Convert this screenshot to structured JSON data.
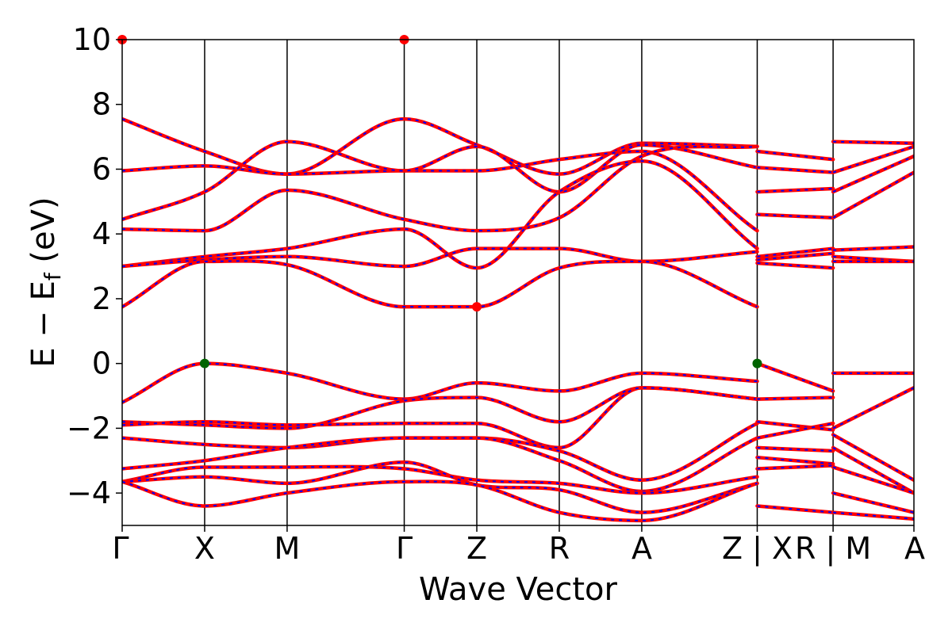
{
  "chart_data": {
    "type": "line",
    "xlabel": "Wave Vector",
    "ylabel": "E − E",
    "ylabel_subscript": "f",
    "ylabel_unit": " (eV)",
    "ylim": [
      -5,
      10
    ],
    "yticks": [
      -4,
      -2,
      0,
      2,
      4,
      6,
      8,
      10
    ],
    "xlim": [
      0,
      9.6
    ],
    "kpoints": [
      {
        "label": "Γ",
        "x": 0
      },
      {
        "label": "X",
        "x": 1
      },
      {
        "label": "M",
        "x": 2
      },
      {
        "label": "Γ",
        "x": 3.42
      },
      {
        "label": "Z",
        "x": 4.3
      },
      {
        "label": "R",
        "x": 5.3
      },
      {
        "label": "A",
        "x": 6.3
      },
      {
        "label": "Z | X",
        "x": 7.7
      },
      {
        "label": "R | M",
        "x": 8.62
      },
      {
        "label": "A",
        "x": 9.6
      }
    ],
    "series_style": {
      "primary_color": "#ff0000",
      "overlay_color": "#0000ff"
    },
    "series": [
      {
        "x": [
          0,
          1,
          2,
          3.42,
          4.3,
          5.3,
          6.3,
          7.7
        ],
        "y": [
          7.55,
          6.55,
          5.85,
          7.55,
          6.75,
          5.85,
          6.8,
          6.7
        ]
      },
      {
        "x": [
          0,
          1,
          2,
          3.42,
          4.3,
          5.3,
          6.3,
          7.7
        ],
        "y": [
          5.95,
          6.1,
          5.85,
          5.95,
          5.95,
          6.3,
          6.55,
          4.1
        ]
      },
      {
        "x": [
          0,
          1,
          2,
          3.42,
          4.3,
          5.3,
          6.3,
          7.7
        ],
        "y": [
          4.45,
          5.3,
          6.85,
          5.95,
          6.7,
          5.3,
          6.75,
          6.05
        ]
      },
      {
        "x": [
          0,
          1,
          2,
          3.42,
          4.3,
          5.3,
          6.3,
          7.7
        ],
        "y": [
          4.15,
          4.1,
          5.35,
          4.45,
          4.1,
          4.5,
          6.4,
          6.7
        ]
      },
      {
        "x": [
          0,
          1,
          2,
          3.42,
          4.3,
          5.3,
          6.3,
          7.7
        ],
        "y": [
          3.0,
          3.3,
          3.55,
          4.15,
          2.95,
          5.3,
          6.25,
          3.55
        ]
      },
      {
        "x": [
          0,
          1,
          2,
          3.42,
          4.3,
          5.3,
          6.3,
          7.7
        ],
        "y": [
          3.0,
          3.2,
          3.3,
          3.0,
          3.55,
          3.55,
          3.15,
          3.45
        ]
      },
      {
        "x": [
          0,
          1,
          2,
          3.42,
          4.3,
          5.3,
          6.3,
          7.7
        ],
        "y": [
          1.75,
          3.15,
          3.05,
          1.75,
          1.75,
          2.95,
          3.15,
          1.75
        ]
      },
      {
        "x": [
          0,
          1,
          2,
          3.42,
          4.3,
          5.3,
          6.3,
          7.7
        ],
        "y": [
          -1.2,
          0.0,
          -0.3,
          -1.1,
          -0.6,
          -0.85,
          -0.3,
          -0.55
        ]
      },
      {
        "x": [
          0,
          1,
          2,
          3.42,
          4.3,
          5.3,
          6.3,
          7.7
        ],
        "y": [
          -1.8,
          -1.9,
          -2.0,
          -1.15,
          -1.05,
          -1.8,
          -0.75,
          -1.1
        ]
      },
      {
        "x": [
          0,
          1,
          2,
          3.42,
          4.3,
          5.3,
          6.3,
          7.7
        ],
        "y": [
          -1.9,
          -1.8,
          -1.9,
          -1.85,
          -1.85,
          -2.6,
          -0.75,
          -1.1
        ]
      },
      {
        "x": [
          0,
          1,
          2,
          3.42,
          4.3,
          5.3,
          6.3,
          7.7
        ],
        "y": [
          -2.3,
          -2.5,
          -2.6,
          -2.3,
          -2.3,
          -2.7,
          -3.6,
          -1.85
        ]
      },
      {
        "x": [
          0,
          1,
          2,
          3.42,
          4.3,
          5.3,
          6.3,
          7.7
        ],
        "y": [
          -3.25,
          -3.0,
          -2.6,
          -2.3,
          -2.3,
          -3.0,
          -3.95,
          -2.3
        ]
      },
      {
        "x": [
          0,
          1,
          2,
          3.42,
          4.3,
          5.3,
          6.3,
          7.7
        ],
        "y": [
          -3.65,
          -3.2,
          -3.2,
          -3.25,
          -3.6,
          -3.7,
          -4.0,
          -3.5
        ]
      },
      {
        "x": [
          0,
          1,
          2,
          3.42,
          4.3,
          5.3,
          6.3,
          7.7
        ],
        "y": [
          -3.65,
          -3.5,
          -3.7,
          -3.05,
          -3.75,
          -3.9,
          -4.6,
          -3.7
        ]
      },
      {
        "x": [
          0,
          1,
          2,
          3.42,
          4.3,
          5.3,
          6.3,
          7.7
        ],
        "y": [
          -3.65,
          -4.4,
          -4.0,
          -3.65,
          -3.75,
          -4.6,
          -4.85,
          -3.7
        ]
      },
      {
        "x": [
          7.7,
          8.62
        ],
        "y": [
          6.55,
          6.3
        ]
      },
      {
        "x": [
          7.7,
          8.62
        ],
        "y": [
          6.05,
          5.9
        ]
      },
      {
        "x": [
          7.7,
          8.62
        ],
        "y": [
          5.3,
          5.4
        ]
      },
      {
        "x": [
          7.7,
          8.62
        ],
        "y": [
          4.6,
          4.5
        ]
      },
      {
        "x": [
          7.7,
          8.62
        ],
        "y": [
          3.3,
          3.55
        ]
      },
      {
        "x": [
          7.7,
          8.62
        ],
        "y": [
          3.2,
          3.4
        ]
      },
      {
        "x": [
          7.7,
          8.62
        ],
        "y": [
          3.1,
          2.95
        ]
      },
      {
        "x": [
          7.7,
          8.62
        ],
        "y": [
          0.0,
          -0.85
        ]
      },
      {
        "x": [
          7.7,
          8.62
        ],
        "y": [
          -1.1,
          -1.05
        ]
      },
      {
        "x": [
          7.7,
          8.62
        ],
        "y": [
          -1.8,
          -2.05
        ]
      },
      {
        "x": [
          7.7,
          8.62
        ],
        "y": [
          -2.3,
          -1.85
        ]
      },
      {
        "x": [
          7.7,
          8.62
        ],
        "y": [
          -2.6,
          -2.7
        ]
      },
      {
        "x": [
          7.7,
          8.62
        ],
        "y": [
          -2.9,
          -3.1
        ]
      },
      {
        "x": [
          7.7,
          8.62
        ],
        "y": [
          -3.25,
          -3.15
        ]
      },
      {
        "x": [
          7.7,
          8.62
        ],
        "y": [
          -4.4,
          -4.6
        ]
      },
      {
        "x": [
          8.62,
          9.6
        ],
        "y": [
          6.85,
          6.8
        ]
      },
      {
        "x": [
          8.62,
          9.6
        ],
        "y": [
          5.9,
          6.7
        ]
      },
      {
        "x": [
          8.62,
          9.6
        ],
        "y": [
          5.3,
          6.4
        ]
      },
      {
        "x": [
          8.62,
          9.6
        ],
        "y": [
          4.5,
          5.9
        ]
      },
      {
        "x": [
          8.62,
          9.6
        ],
        "y": [
          3.5,
          3.6
        ]
      },
      {
        "x": [
          8.62,
          9.6
        ],
        "y": [
          3.3,
          3.15
        ]
      },
      {
        "x": [
          8.62,
          9.6
        ],
        "y": [
          3.15,
          3.15
        ]
      },
      {
        "x": [
          8.62,
          9.6
        ],
        "y": [
          -0.3,
          -0.3
        ]
      },
      {
        "x": [
          8.62,
          9.6
        ],
        "y": [
          -2.0,
          -0.75
        ]
      },
      {
        "x": [
          8.62,
          9.6
        ],
        "y": [
          -2.2,
          -3.6
        ]
      },
      {
        "x": [
          8.62,
          9.6
        ],
        "y": [
          -2.6,
          -4.0
        ]
      },
      {
        "x": [
          8.62,
          9.6
        ],
        "y": [
          -3.2,
          -4.0
        ]
      },
      {
        "x": [
          8.62,
          9.6
        ],
        "y": [
          -4.0,
          -4.6
        ]
      },
      {
        "x": [
          8.62,
          9.6
        ],
        "y": [
          -4.6,
          -4.8
        ]
      }
    ],
    "markers": [
      {
        "name": "vbm-marker",
        "x": 1,
        "y": 0.0,
        "color": "#006400"
      },
      {
        "name": "vbm-marker",
        "x": 7.7,
        "y": 0.0,
        "color": "#006400"
      },
      {
        "name": "cbm-marker",
        "x": 4.3,
        "y": 1.75,
        "color": "#ff0000"
      },
      {
        "name": "band-edge-marker",
        "x": 0,
        "y": 10.0,
        "color": "#ff0000"
      },
      {
        "name": "band-edge-marker",
        "x": 3.42,
        "y": 10.0,
        "color": "#ff0000"
      }
    ],
    "grid": false
  }
}
